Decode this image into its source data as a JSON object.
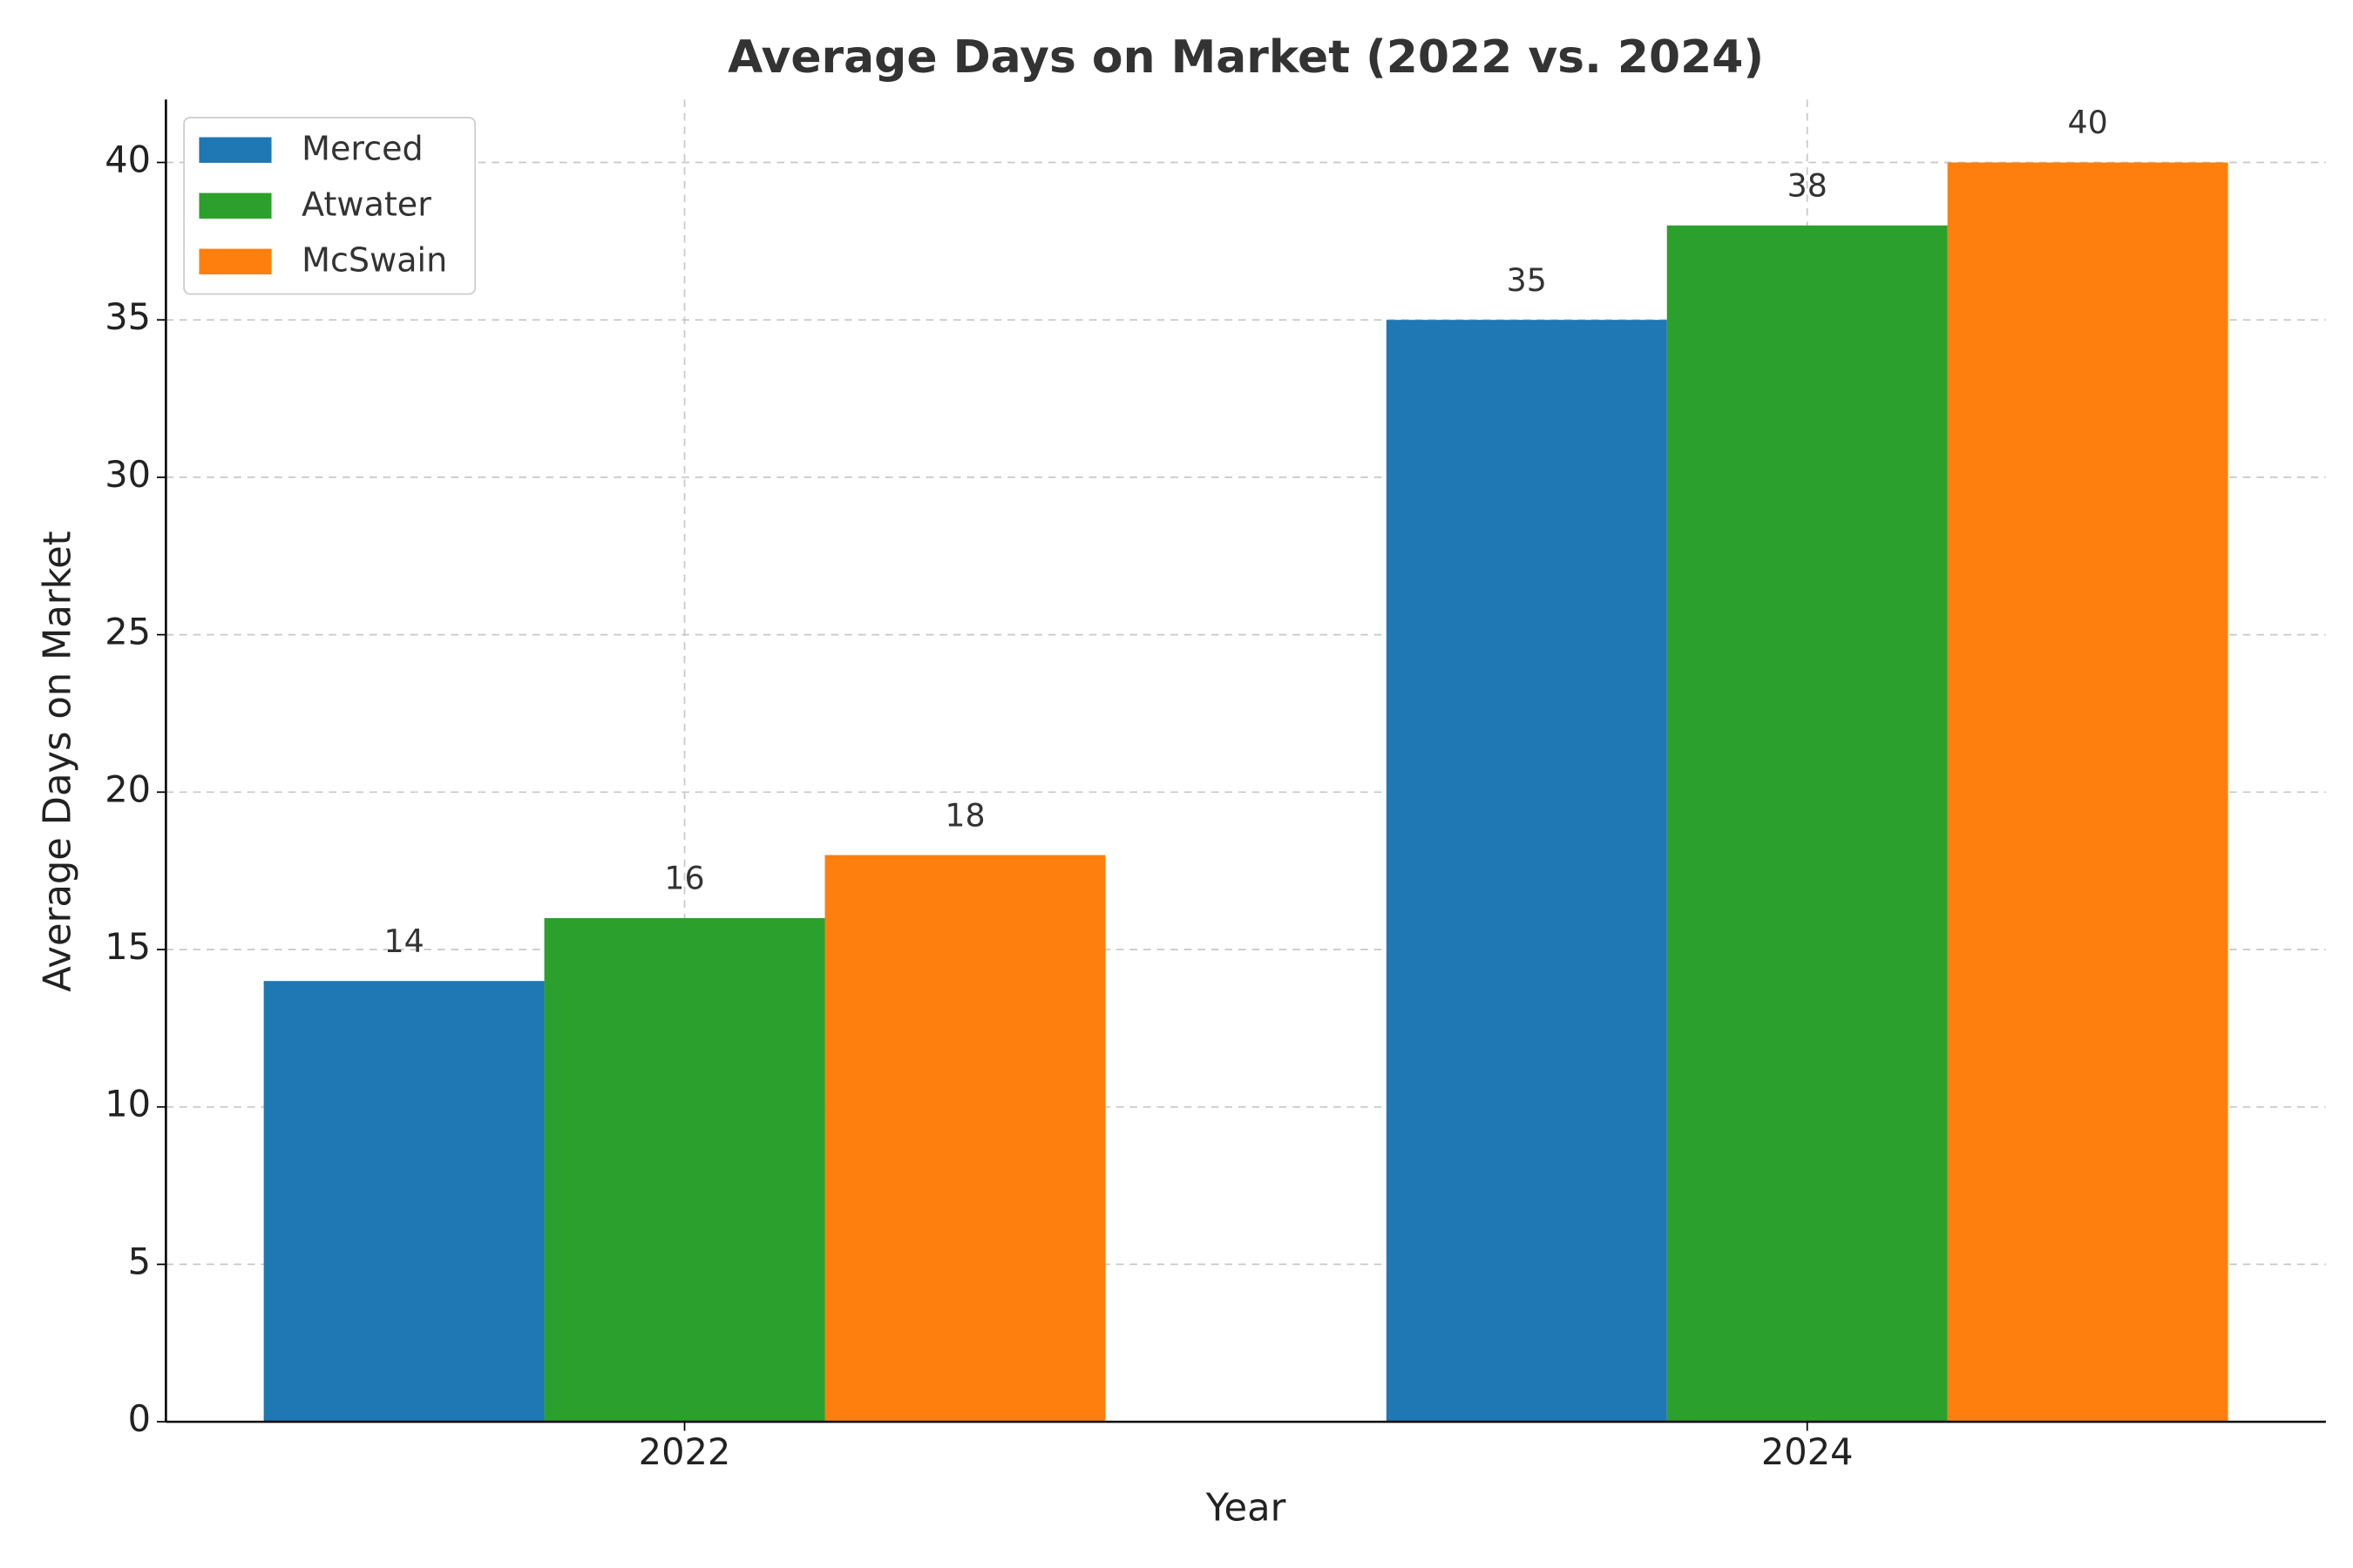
{
  "chart_data": {
    "type": "bar",
    "title": "Average Days on Market (2022 vs. 2024)",
    "x_label": "Year",
    "y_label": "Average Days on Market",
    "categories": [
      "2022",
      "2024"
    ],
    "series": [
      {
        "name": "Merced",
        "color": "#1f77b4",
        "values": [
          14,
          35
        ]
      },
      {
        "name": "Atwater",
        "color": "#2ca02c",
        "values": [
          16,
          38
        ]
      },
      {
        "name": "McSwain",
        "color": "#ff7f0e",
        "values": [
          18,
          40
        ]
      }
    ],
    "ylim": [
      0,
      42
    ],
    "yticks": [
      0,
      5,
      10,
      15,
      20,
      25,
      30,
      35,
      40
    ],
    "grid": true,
    "legend": "upper-left"
  }
}
